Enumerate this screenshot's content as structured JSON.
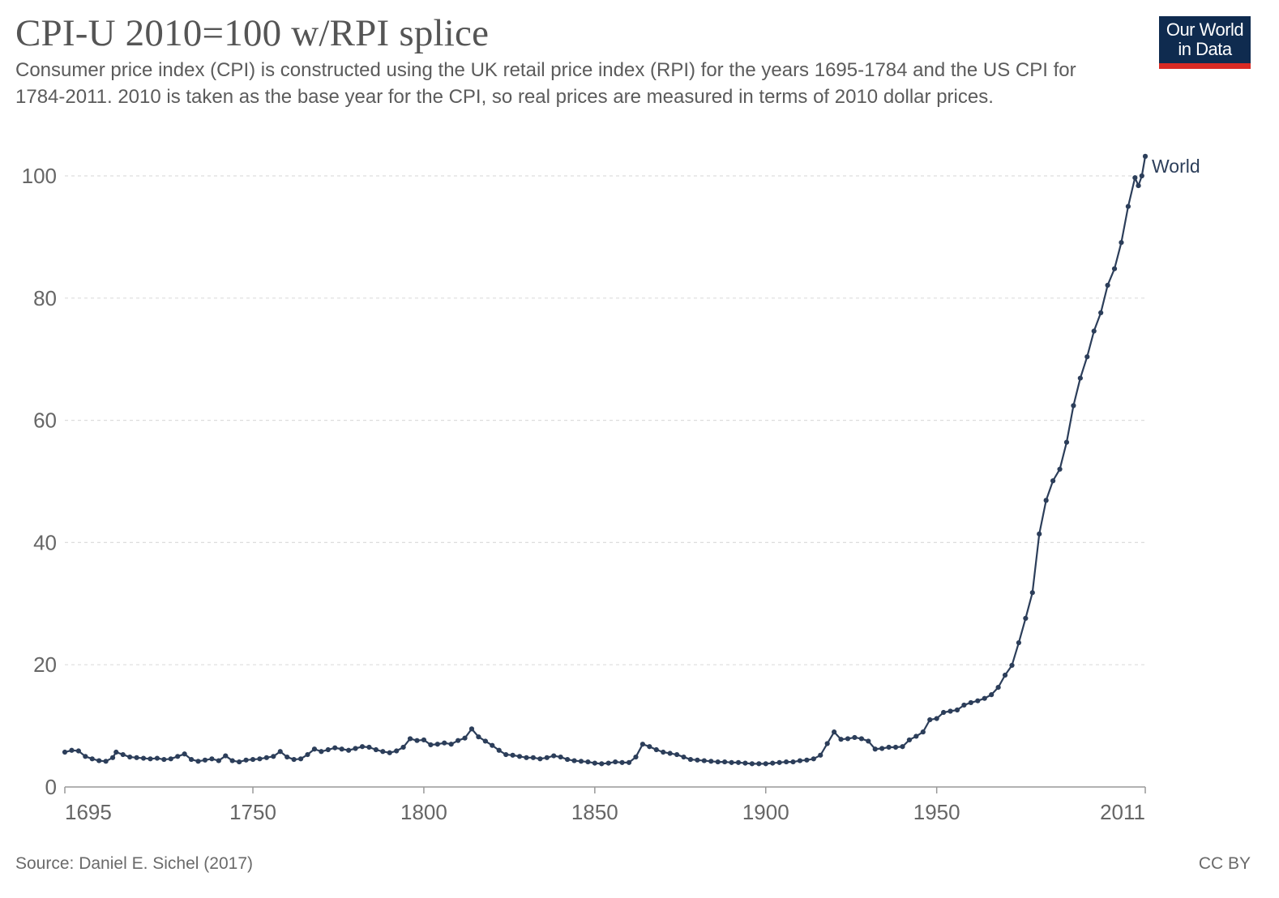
{
  "header": {
    "title": "CPI-U 2010=100 w/RPI splice",
    "subtitle": "Consumer price index (CPI) is constructed using the UK retail price index (RPI) for the years 1695-1784 and the US CPI for 1784-2011. 2010 is taken as the base year for the CPI, so real prices are measured in terms of 2010 dollar prices.",
    "logo_line1": "Our World",
    "logo_line2": "in Data"
  },
  "footer": {
    "source": "Source: Daniel E. Sichel (2017)",
    "license": "CC BY"
  },
  "colors": {
    "series": "#2c3e5a",
    "grid": "#dddddd",
    "logo_bg": "#0f2b4f",
    "logo_accent": "#d92a24"
  },
  "chart_data": {
    "type": "line",
    "title": "CPI-U 2010=100 w/RPI splice",
    "xlabel": "",
    "ylabel": "",
    "xlim": [
      1695,
      2011
    ],
    "ylim": [
      0,
      100
    ],
    "x_ticks": [
      1695,
      1750,
      1800,
      1850,
      1900,
      1950,
      2011
    ],
    "y_ticks": [
      0,
      20,
      40,
      60,
      80,
      100
    ],
    "grid": "horizontal dashed",
    "markers": true,
    "series": [
      {
        "name": "World",
        "points": [
          [
            1695,
            5.7
          ],
          [
            1697,
            6.0
          ],
          [
            1699,
            5.9
          ],
          [
            1701,
            5.0
          ],
          [
            1703,
            4.6
          ],
          [
            1705,
            4.3
          ],
          [
            1707,
            4.2
          ],
          [
            1709,
            4.8
          ],
          [
            1710,
            5.7
          ],
          [
            1712,
            5.3
          ],
          [
            1714,
            4.9
          ],
          [
            1716,
            4.8
          ],
          [
            1718,
            4.7
          ],
          [
            1720,
            4.6
          ],
          [
            1722,
            4.7
          ],
          [
            1724,
            4.5
          ],
          [
            1726,
            4.6
          ],
          [
            1728,
            5.0
          ],
          [
            1730,
            5.4
          ],
          [
            1732,
            4.5
          ],
          [
            1734,
            4.2
          ],
          [
            1736,
            4.4
          ],
          [
            1738,
            4.6
          ],
          [
            1740,
            4.3
          ],
          [
            1742,
            5.1
          ],
          [
            1744,
            4.3
          ],
          [
            1746,
            4.1
          ],
          [
            1748,
            4.4
          ],
          [
            1750,
            4.5
          ],
          [
            1752,
            4.6
          ],
          [
            1754,
            4.8
          ],
          [
            1756,
            5.0
          ],
          [
            1758,
            5.8
          ],
          [
            1760,
            4.9
          ],
          [
            1762,
            4.5
          ],
          [
            1764,
            4.6
          ],
          [
            1766,
            5.3
          ],
          [
            1768,
            6.2
          ],
          [
            1770,
            5.8
          ],
          [
            1772,
            6.1
          ],
          [
            1774,
            6.4
          ],
          [
            1776,
            6.2
          ],
          [
            1778,
            6.0
          ],
          [
            1780,
            6.3
          ],
          [
            1782,
            6.6
          ],
          [
            1784,
            6.5
          ],
          [
            1786,
            6.1
          ],
          [
            1788,
            5.8
          ],
          [
            1790,
            5.6
          ],
          [
            1792,
            5.9
          ],
          [
            1794,
            6.5
          ],
          [
            1796,
            7.9
          ],
          [
            1798,
            7.6
          ],
          [
            1800,
            7.7
          ],
          [
            1802,
            6.9
          ],
          [
            1804,
            7.0
          ],
          [
            1806,
            7.2
          ],
          [
            1808,
            7.0
          ],
          [
            1810,
            7.6
          ],
          [
            1812,
            8.0
          ],
          [
            1814,
            9.5
          ],
          [
            1816,
            8.2
          ],
          [
            1818,
            7.5
          ],
          [
            1820,
            6.8
          ],
          [
            1822,
            6.0
          ],
          [
            1824,
            5.3
          ],
          [
            1826,
            5.2
          ],
          [
            1828,
            5.0
          ],
          [
            1830,
            4.8
          ],
          [
            1832,
            4.8
          ],
          [
            1834,
            4.6
          ],
          [
            1836,
            4.8
          ],
          [
            1838,
            5.1
          ],
          [
            1840,
            4.9
          ],
          [
            1842,
            4.5
          ],
          [
            1844,
            4.3
          ],
          [
            1846,
            4.2
          ],
          [
            1848,
            4.1
          ],
          [
            1850,
            3.9
          ],
          [
            1852,
            3.8
          ],
          [
            1854,
            3.9
          ],
          [
            1856,
            4.1
          ],
          [
            1858,
            4.0
          ],
          [
            1860,
            4.0
          ],
          [
            1862,
            4.9
          ],
          [
            1864,
            7.0
          ],
          [
            1866,
            6.6
          ],
          [
            1868,
            6.1
          ],
          [
            1870,
            5.7
          ],
          [
            1872,
            5.5
          ],
          [
            1874,
            5.3
          ],
          [
            1876,
            4.9
          ],
          [
            1878,
            4.5
          ],
          [
            1880,
            4.4
          ],
          [
            1882,
            4.3
          ],
          [
            1884,
            4.2
          ],
          [
            1886,
            4.1
          ],
          [
            1888,
            4.1
          ],
          [
            1890,
            4.0
          ],
          [
            1892,
            4.0
          ],
          [
            1894,
            3.9
          ],
          [
            1896,
            3.8
          ],
          [
            1898,
            3.8
          ],
          [
            1900,
            3.8
          ],
          [
            1902,
            3.9
          ],
          [
            1904,
            4.0
          ],
          [
            1906,
            4.1
          ],
          [
            1908,
            4.1
          ],
          [
            1910,
            4.3
          ],
          [
            1912,
            4.4
          ],
          [
            1914,
            4.6
          ],
          [
            1916,
            5.2
          ],
          [
            1918,
            7.1
          ],
          [
            1920,
            9.0
          ],
          [
            1922,
            7.8
          ],
          [
            1924,
            7.9
          ],
          [
            1926,
            8.1
          ],
          [
            1928,
            7.9
          ],
          [
            1930,
            7.5
          ],
          [
            1932,
            6.2
          ],
          [
            1934,
            6.3
          ],
          [
            1936,
            6.5
          ],
          [
            1938,
            6.5
          ],
          [
            1940,
            6.6
          ],
          [
            1942,
            7.7
          ],
          [
            1944,
            8.3
          ],
          [
            1946,
            9.0
          ],
          [
            1948,
            11.0
          ],
          [
            1950,
            11.2
          ],
          [
            1952,
            12.2
          ],
          [
            1954,
            12.4
          ],
          [
            1956,
            12.6
          ],
          [
            1958,
            13.4
          ],
          [
            1960,
            13.8
          ],
          [
            1962,
            14.1
          ],
          [
            1964,
            14.5
          ],
          [
            1966,
            15.1
          ],
          [
            1968,
            16.3
          ],
          [
            1970,
            18.3
          ],
          [
            1972,
            19.9
          ],
          [
            1974,
            23.6
          ],
          [
            1976,
            27.6
          ],
          [
            1978,
            31.8
          ],
          [
            1980,
            41.4
          ],
          [
            1982,
            46.9
          ],
          [
            1984,
            50.1
          ],
          [
            1986,
            52.0
          ],
          [
            1988,
            56.4
          ],
          [
            1990,
            62.4
          ],
          [
            1992,
            66.9
          ],
          [
            1994,
            70.4
          ],
          [
            1996,
            74.6
          ],
          [
            1998,
            77.6
          ],
          [
            2000,
            82.1
          ],
          [
            2002,
            84.8
          ],
          [
            2004,
            89.1
          ],
          [
            2006,
            95.0
          ],
          [
            2008,
            99.7
          ],
          [
            2009,
            98.4
          ],
          [
            2010,
            100.0
          ],
          [
            2011,
            103.2
          ]
        ]
      }
    ]
  }
}
